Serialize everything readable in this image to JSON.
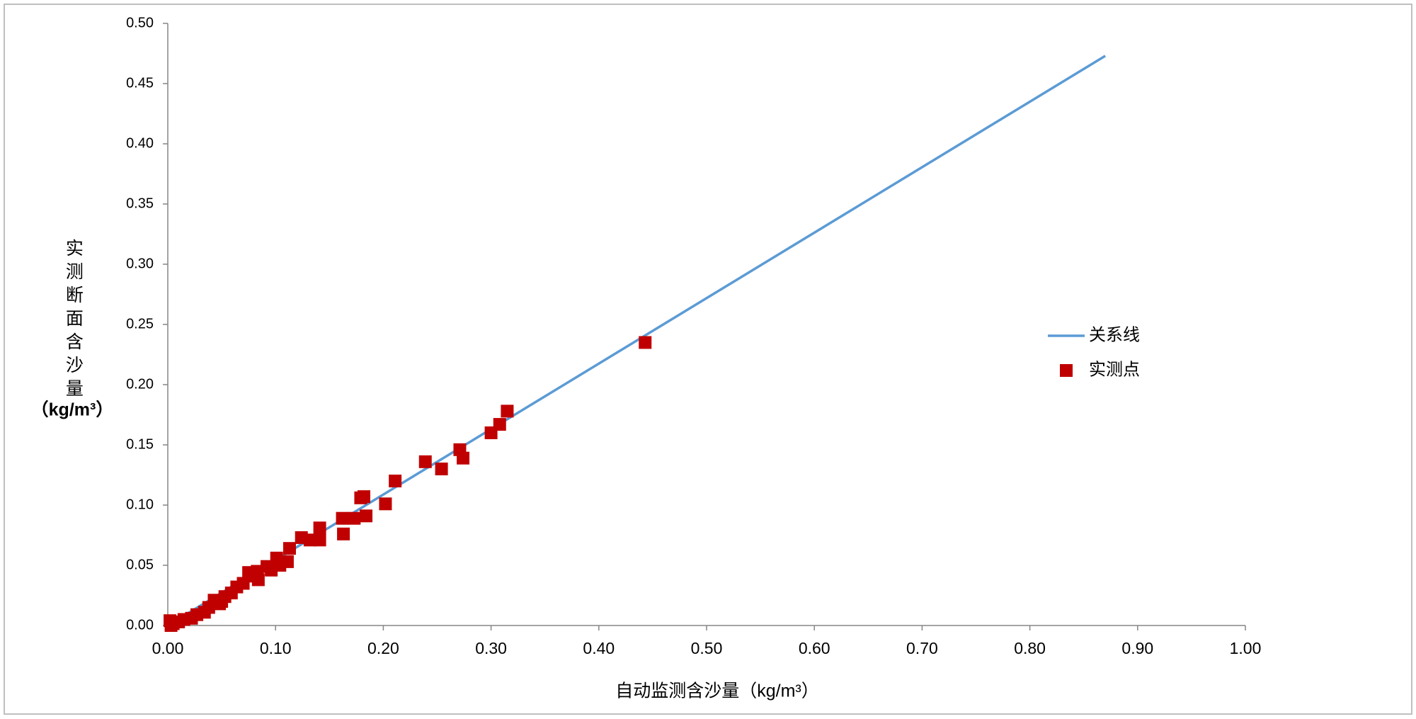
{
  "chart_data": {
    "type": "scatter",
    "ylabel": [
      "实测断面含沙量",
      "（kg/m³）"
    ],
    "xlabel": "自动监测含沙量（kg/m³）",
    "xlim": [
      0,
      1.0
    ],
    "ylim": [
      0,
      0.5
    ],
    "xticks": [
      {
        "value": 0,
        "label": "0.00"
      },
      {
        "value": 0.1,
        "label": "0.10"
      },
      {
        "value": 0.2,
        "label": "0.20"
      },
      {
        "value": 0.3,
        "label": "0.30"
      },
      {
        "value": 0.4,
        "label": "0.40"
      },
      {
        "value": 0.5,
        "label": "0.50"
      },
      {
        "value": 0.6,
        "label": "0.60"
      },
      {
        "value": 0.7,
        "label": "0.70"
      },
      {
        "value": 0.8,
        "label": "0.80"
      },
      {
        "value": 0.9,
        "label": "0.90"
      },
      {
        "value": 1.0,
        "label": "1.00"
      }
    ],
    "yticks": [
      {
        "value": 0,
        "label": "0.00"
      },
      {
        "value": 0.05,
        "label": "0.05"
      },
      {
        "value": 0.1,
        "label": "0.10"
      },
      {
        "value": 0.15,
        "label": "0.15"
      },
      {
        "value": 0.2,
        "label": "0.20"
      },
      {
        "value": 0.25,
        "label": "0.25"
      },
      {
        "value": 0.3,
        "label": "0.30"
      },
      {
        "value": 0.35,
        "label": "0.35"
      },
      {
        "value": 0.4,
        "label": "0.40"
      },
      {
        "value": 0.45,
        "label": "0.45"
      },
      {
        "value": 0.5,
        "label": "0.50"
      }
    ],
    "grid": false,
    "legend": "right",
    "series": [
      {
        "name": "关系线",
        "kind": "line",
        "color": "#5b9bd5",
        "x": [
          0,
          0.87
        ],
        "values": [
          0,
          0.473
        ]
      },
      {
        "name": "实测点",
        "kind": "points",
        "color": "#c00000",
        "x": [
          0.443,
          0.315,
          0.308,
          0.3,
          0.271,
          0.274,
          0.239,
          0.254,
          0.211,
          0.182,
          0.179,
          0.202,
          0.184,
          0.162,
          0.173,
          0.163,
          0.141,
          0.124,
          0.141,
          0.132,
          0.113,
          0.111,
          0.101,
          0.092,
          0.096,
          0.083,
          0.075,
          0.084,
          0.07,
          0.064,
          0.059,
          0.053,
          0.048,
          0.043,
          0.038,
          0.034,
          0.027,
          0.022,
          0.015,
          0.01,
          0.005,
          0.002,
          0.003,
          0.079,
          0.104,
          0.05
        ],
        "values": [
          0.235,
          0.178,
          0.167,
          0.16,
          0.146,
          0.139,
          0.136,
          0.13,
          0.12,
          0.107,
          0.106,
          0.101,
          0.091,
          0.089,
          0.089,
          0.076,
          0.081,
          0.073,
          0.071,
          0.071,
          0.064,
          0.053,
          0.056,
          0.049,
          0.046,
          0.045,
          0.044,
          0.038,
          0.035,
          0.032,
          0.027,
          0.024,
          0.018,
          0.021,
          0.015,
          0.011,
          0.009,
          0.006,
          0.005,
          0.003,
          0.0015,
          0.004,
          0,
          0.041,
          0.05,
          0.02
        ]
      }
    ]
  }
}
